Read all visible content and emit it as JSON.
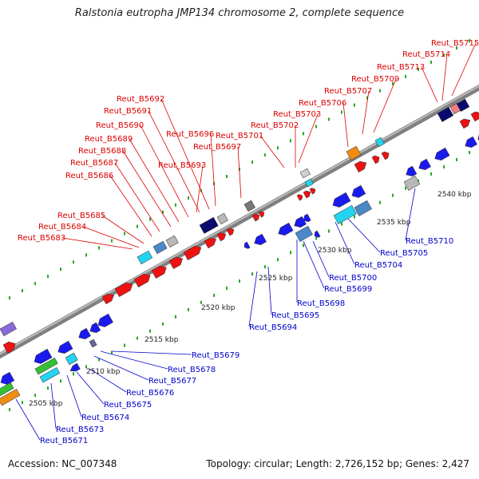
{
  "title": "Ralstonia eutropha JMP134 chromosome 2, complete sequence",
  "footer": {
    "accession": "Accession: NC_007348",
    "topology": "Topology: circular; Length: 2,726,152 bp; Genes: 2,427"
  },
  "colors": {
    "forward_label": "#dd0000",
    "reverse_label": "#0000cc",
    "backbone": "#808080",
    "tick": "#22aa22"
  },
  "scale_labels": [
    {
      "text": "2505 kbp"
    },
    {
      "text": "2510 kbp"
    },
    {
      "text": "2515 kbp"
    },
    {
      "text": "2520 kbp"
    },
    {
      "text": "2525 kbp"
    },
    {
      "text": "2530 kbp"
    },
    {
      "text": "2535 kbp"
    },
    {
      "text": "2540 kbp"
    }
  ],
  "forward_genes": [
    "Reut_B5683",
    "Reut_B5684",
    "Reut_B5685",
    "Reut_B5686",
    "Reut_B5687",
    "Reut_B5688",
    "Reut_B5689",
    "Reut_B5690",
    "Reut_B5691",
    "Reut_B5692",
    "Reut_B5693",
    "Reut_B5696",
    "Reut_B5697",
    "Reut_B5701",
    "Reut_B5702",
    "Reut_B5703",
    "Reut_B5706",
    "Reut_B5707",
    "Reut_B5709",
    "Reut_B5713",
    "Reut_B5714",
    "Reut_B5715"
  ],
  "reverse_genes": [
    "Reut_B5671",
    "Reut_B5673",
    "Reut_B5674",
    "Reut_B5675",
    "Reut_B5676",
    "Reut_B5677",
    "Reut_B5678",
    "Reut_B5679",
    "Reut_B5694",
    "Reut_B5695",
    "Reut_B5698",
    "Reut_B5699",
    "Reut_B5700",
    "Reut_B5704",
    "Reut_B5705",
    "Reut_B5710"
  ]
}
